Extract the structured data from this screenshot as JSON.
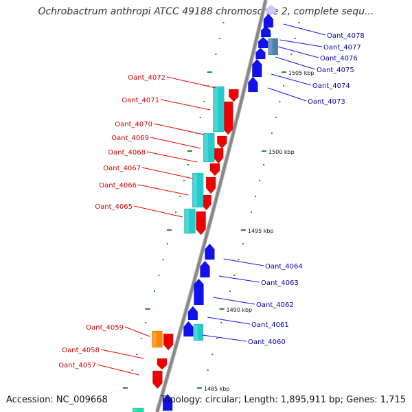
{
  "title": "Ochrobactrum anthropi ATCC 49188 chromosome 2, complete sequ...",
  "footer": {
    "accession": "Accession: NC_009668",
    "topology": "Topology: circular; Length: 1,895,911 bp; Genes: 1,715"
  },
  "colors": {
    "backbone": "#888888",
    "tick": "#228b22",
    "forward_gene": "#ee0000",
    "forward_label": "#cc0000",
    "forward_cds": "#22cccc",
    "reverse_gene": "#1111ee",
    "reverse_label": "#0000aa",
    "reverse_cds": "#4a7fae",
    "other_gene": "#ff8800"
  },
  "kbp_labels": [
    {
      "kb": 1505,
      "label": "1505 kbp"
    },
    {
      "kb": 1500,
      "label": "1500 kbp"
    },
    {
      "kb": 1495,
      "label": "1495 kbp"
    },
    {
      "kb": 1490,
      "label": "1490 kbp"
    },
    {
      "kb": 1485,
      "label": "1485 kbp"
    }
  ],
  "reverse_genes": [
    {
      "name": "Oant_4078"
    },
    {
      "name": "Oant_4077"
    },
    {
      "name": "Oant_4076"
    },
    {
      "name": "Oant_4075"
    },
    {
      "name": "Oant_4074"
    },
    {
      "name": "Oant_4073"
    },
    {
      "name": "Oant_4064"
    },
    {
      "name": "Oant_4063"
    },
    {
      "name": "Oant_4062"
    },
    {
      "name": "Oant_4061"
    },
    {
      "name": "Oant_4060"
    }
  ],
  "forward_genes": [
    {
      "name": "Oant_4072"
    },
    {
      "name": "Oant_4071"
    },
    {
      "name": "Oant_4070"
    },
    {
      "name": "Oant_4069"
    },
    {
      "name": "Oant_4068"
    },
    {
      "name": "Oant_4067"
    },
    {
      "name": "Oant_4066"
    },
    {
      "name": "Oant_4065"
    },
    {
      "name": "Oant_4059"
    },
    {
      "name": "Oant_4058"
    },
    {
      "name": "Oant_4057"
    }
  ]
}
